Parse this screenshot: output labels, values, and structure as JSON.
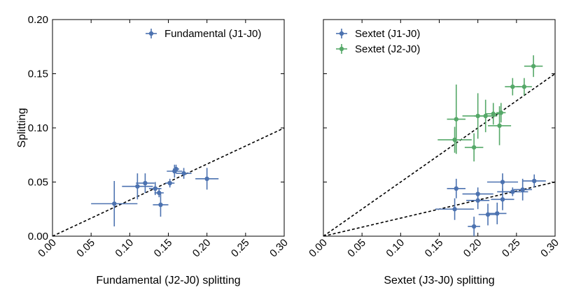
{
  "colors": {
    "blue": "#4c72b0",
    "green": "#55a868",
    "frame": "#000000",
    "ref_line": "#000000"
  },
  "chart_data": [
    {
      "type": "scatter",
      "xlabel": "Fundamental (J2-J0) splitting",
      "ylabel": "Splitting",
      "xlim": [
        0.0,
        0.3
      ],
      "ylim": [
        0.0,
        0.2
      ],
      "xticks": [
        "0.00",
        "0.05",
        "0.10",
        "0.15",
        "0.20",
        "0.25",
        "0.30"
      ],
      "yticks": [
        "0.00",
        "0.05",
        "0.10",
        "0.15",
        "0.20"
      ],
      "legend_position": "top-right",
      "reference_lines": [
        {
          "slope": 0.333,
          "style": "dashed"
        }
      ],
      "series": [
        {
          "name": "Fundamental (J1-J0)",
          "color": "#4c72b0",
          "points": [
            {
              "x": 0.08,
              "y": 0.03,
              "xerr": 0.03,
              "yerr": 0.021
            },
            {
              "x": 0.11,
              "y": 0.046,
              "xerr": 0.02,
              "yerr": 0.012
            },
            {
              "x": 0.12,
              "y": 0.049,
              "xerr": 0.012,
              "yerr": 0.009
            },
            {
              "x": 0.133,
              "y": 0.044,
              "xerr": 0.008,
              "yerr": 0.006
            },
            {
              "x": 0.14,
              "y": 0.029,
              "xerr": 0.01,
              "yerr": 0.011
            },
            {
              "x": 0.138,
              "y": 0.04,
              "xerr": 0.006,
              "yerr": 0.004
            },
            {
              "x": 0.152,
              "y": 0.049,
              "xerr": 0.006,
              "yerr": 0.004
            },
            {
              "x": 0.158,
              "y": 0.06,
              "xerr": 0.01,
              "yerr": 0.006
            },
            {
              "x": 0.16,
              "y": 0.062,
              "xerr": 0.004,
              "yerr": 0.004
            },
            {
              "x": 0.17,
              "y": 0.058,
              "xerr": 0.01,
              "yerr": 0.005
            },
            {
              "x": 0.2,
              "y": 0.053,
              "xerr": 0.015,
              "yerr": 0.01
            }
          ]
        }
      ]
    },
    {
      "type": "scatter",
      "xlabel": "Sextet (J3-J0) splitting",
      "ylabel": "",
      "xlim": [
        0.0,
        0.3
      ],
      "ylim": [
        0.0,
        0.2
      ],
      "xticks": [
        "0.00",
        "0.05",
        "0.10",
        "0.15",
        "0.20",
        "0.25",
        "0.30"
      ],
      "yticks": [],
      "legend_position": "top-left",
      "reference_lines": [
        {
          "slope": 0.5,
          "style": "dashed"
        },
        {
          "slope": 0.1667,
          "style": "dashed"
        }
      ],
      "series": [
        {
          "name": "Sextet (J1-J0)",
          "color": "#4c72b0",
          "points": [
            {
              "x": 0.17,
              "y": 0.025,
              "xerr": 0.025,
              "yerr": 0.01
            },
            {
              "x": 0.172,
              "y": 0.044,
              "xerr": 0.012,
              "yerr": 0.009
            },
            {
              "x": 0.195,
              "y": 0.009,
              "xerr": 0.008,
              "yerr": 0.009
            },
            {
              "x": 0.2,
              "y": 0.033,
              "xerr": 0.015,
              "yerr": 0.008
            },
            {
              "x": 0.2,
              "y": 0.039,
              "xerr": 0.02,
              "yerr": 0.006
            },
            {
              "x": 0.213,
              "y": 0.02,
              "xerr": 0.012,
              "yerr": 0.01
            },
            {
              "x": 0.225,
              "y": 0.021,
              "xerr": 0.012,
              "yerr": 0.01
            },
            {
              "x": 0.232,
              "y": 0.034,
              "xerr": 0.015,
              "yerr": 0.01
            },
            {
              "x": 0.232,
              "y": 0.05,
              "xerr": 0.02,
              "yerr": 0.008
            },
            {
              "x": 0.245,
              "y": 0.041,
              "xerr": 0.02,
              "yerr": 0.004
            },
            {
              "x": 0.258,
              "y": 0.043,
              "xerr": 0.012,
              "yerr": 0.01
            },
            {
              "x": 0.273,
              "y": 0.051,
              "xerr": 0.015,
              "yerr": 0.006
            }
          ]
        },
        {
          "name": "Sextet (J2-J0)",
          "color": "#55a868",
          "points": [
            {
              "x": 0.17,
              "y": 0.089,
              "xerr": 0.022,
              "yerr": 0.012
            },
            {
              "x": 0.172,
              "y": 0.108,
              "xerr": 0.012,
              "yerr": 0.032
            },
            {
              "x": 0.195,
              "y": 0.082,
              "xerr": 0.012,
              "yerr": 0.013
            },
            {
              "x": 0.2,
              "y": 0.111,
              "xerr": 0.02,
              "yerr": 0.021
            },
            {
              "x": 0.21,
              "y": 0.111,
              "xerr": 0.015,
              "yerr": 0.015
            },
            {
              "x": 0.22,
              "y": 0.113,
              "xerr": 0.01,
              "yerr": 0.01
            },
            {
              "x": 0.228,
              "y": 0.102,
              "xerr": 0.015,
              "yerr": 0.018
            },
            {
              "x": 0.23,
              "y": 0.114,
              "xerr": 0.006,
              "yerr": 0.009
            },
            {
              "x": 0.245,
              "y": 0.138,
              "xerr": 0.01,
              "yerr": 0.008
            },
            {
              "x": 0.26,
              "y": 0.138,
              "xerr": 0.01,
              "yerr": 0.008
            },
            {
              "x": 0.272,
              "y": 0.157,
              "xerr": 0.012,
              "yerr": 0.01
            }
          ]
        }
      ]
    }
  ]
}
